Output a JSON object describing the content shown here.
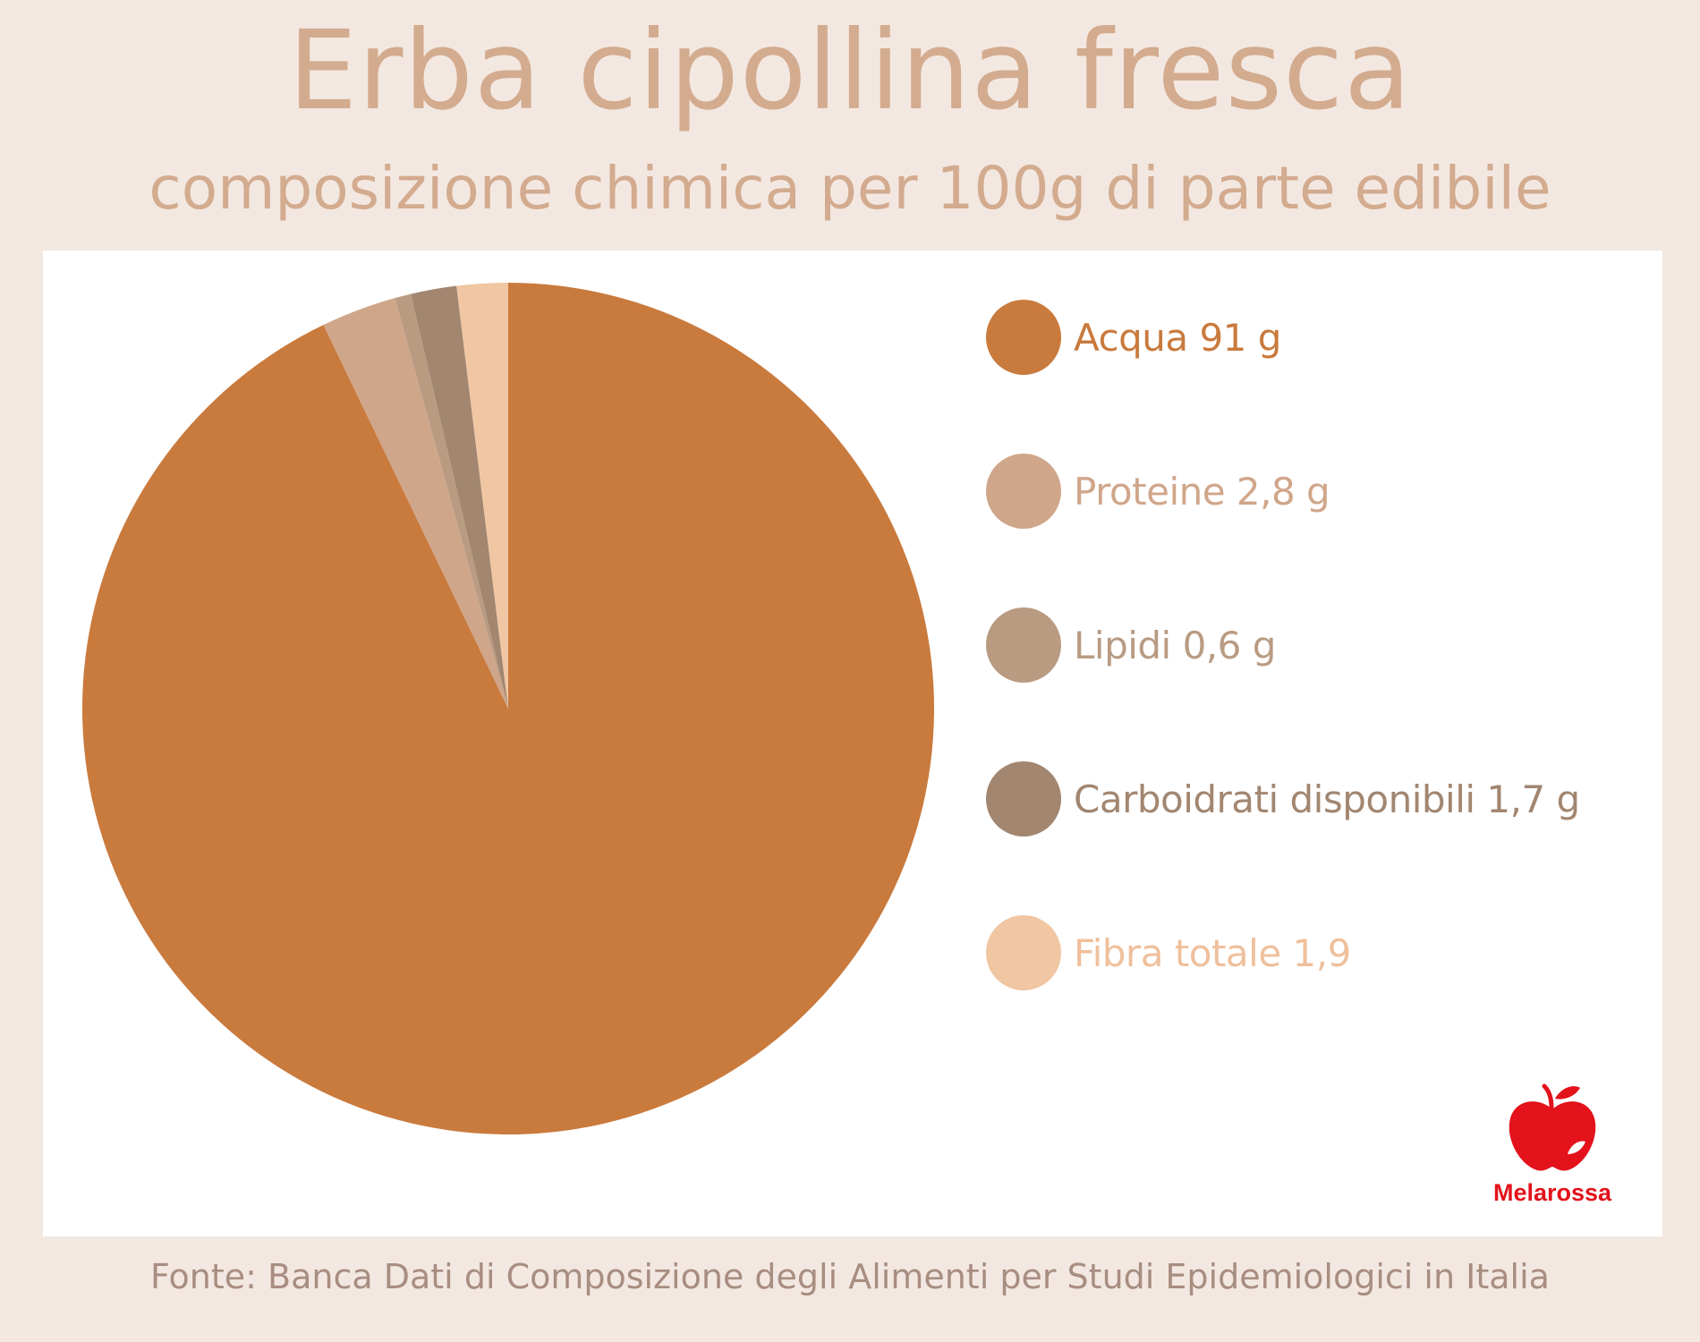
{
  "header": {
    "title": "Erba cipollina fresca",
    "subtitle": "composizione chimica per 100g di parte edibile"
  },
  "chart_data": {
    "type": "pie",
    "title": "Erba cipollina fresca",
    "subtitle": "composizione chimica per 100g di parte edibile",
    "categories": [
      "Acqua",
      "Proteine",
      "Lipidi",
      "Carboidrati disponibili",
      "Fibra totale"
    ],
    "values": [
      91,
      2.8,
      0.6,
      1.7,
      1.9
    ],
    "colors": [
      "#c97a3d",
      "#d0a68a",
      "#b99b82",
      "#a28670",
      "#f0c6a3"
    ],
    "legend_labels": [
      "Acqua 91 g",
      "Proteine 2,8 g",
      "Lipidi 0,6 g",
      "Carboidrati disponibili 1,7 g",
      "Fibra totale 1,9"
    ],
    "legend_position": "right",
    "start_angle": "12 o'clock",
    "direction": "counterclockwise"
  },
  "logo": {
    "text": "Melarossa",
    "icon": "apple-icon",
    "color": "#e3121b"
  },
  "footer": {
    "source": "Fonte: Banca Dati di Composizione degli Alimenti per Studi Epidemiologici in Italia"
  }
}
